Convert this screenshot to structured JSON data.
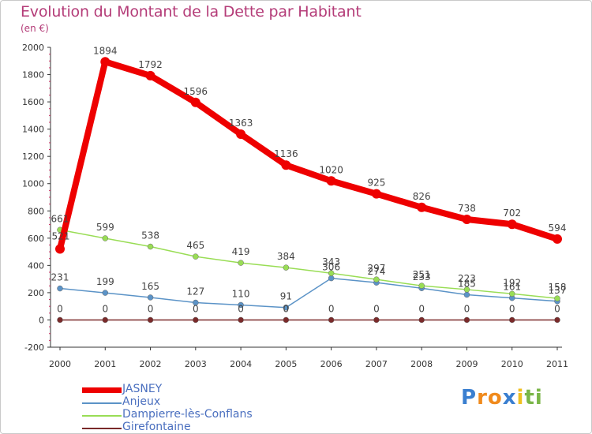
{
  "chart_data": {
    "type": "line",
    "title": "Evolution du Montant de la Dette par Habitant",
    "subtitle": "(en €)",
    "xlabel": "",
    "ylabel": "",
    "ylim": [
      -200,
      2000
    ],
    "yticks": [
      -200,
      0,
      200,
      400,
      600,
      800,
      1000,
      1200,
      1400,
      1600,
      1800,
      2000
    ],
    "categories": [
      "2000",
      "2001",
      "2002",
      "2003",
      "2004",
      "2005",
      "2006",
      "2007",
      "2008",
      "2009",
      "2010",
      "2011"
    ],
    "grid": false,
    "legend_position": "bottom-left",
    "series": [
      {
        "name": "JASNEY",
        "color": "#ee0000",
        "values": [
          521,
          1894,
          1792,
          1596,
          1363,
          1136,
          1020,
          925,
          826,
          738,
          702,
          594
        ]
      },
      {
        "name": "Anjeux",
        "color": "#5b93c7",
        "values": [
          231,
          199,
          165,
          127,
          110,
          91,
          306,
          274,
          233,
          185,
          161,
          137
        ]
      },
      {
        "name": "Dampierre-lès-Conflans",
        "color": "#99dd55",
        "values": [
          661,
          599,
          538,
          465,
          419,
          384,
          343,
          297,
          251,
          223,
          192,
          158
        ]
      },
      {
        "name": "Girefontaine",
        "color": "#7a2a2a",
        "values": [
          0,
          0,
          0,
          0,
          0,
          0,
          0,
          0,
          0,
          0,
          0,
          0
        ]
      }
    ]
  },
  "logo": {
    "text": "Proxiti",
    "letters": [
      "P",
      "r",
      "o",
      "x",
      "i",
      "t",
      "i"
    ]
  }
}
